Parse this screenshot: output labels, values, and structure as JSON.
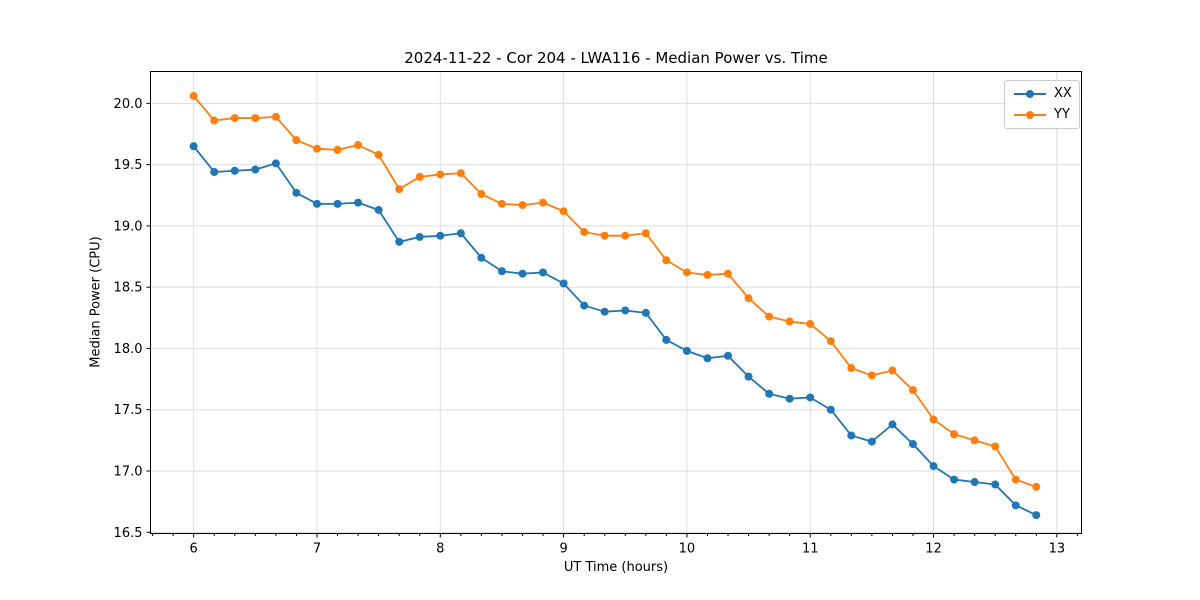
{
  "chart_data": {
    "type": "line",
    "title": "2024-11-22 - Cor 204 - LWA116 - Median Power vs. Time",
    "xlabel": "UT Time (hours)",
    "ylabel": "Median Power (CPU)",
    "xlim": [
      5.65,
      13.2
    ],
    "ylim": [
      16.49,
      20.26
    ],
    "x_ticks": [
      6,
      7,
      8,
      9,
      10,
      11,
      12,
      13
    ],
    "x_tick_labels": [
      "6",
      "7",
      "8",
      "9",
      "10",
      "11",
      "12",
      "13"
    ],
    "y_ticks": [
      16.5,
      17.0,
      17.5,
      18.0,
      18.5,
      19.0,
      19.5,
      20.0
    ],
    "y_tick_labels": [
      "16.5",
      "17.0",
      "17.5",
      "18.0",
      "18.5",
      "19.0",
      "19.5",
      "20.0"
    ],
    "x_minor_step": 0.16667,
    "grid": true,
    "grid_color": "#dedede",
    "spine_color": "#000000",
    "legend_position": "upper right",
    "x": [
      6.0,
      6.167,
      6.333,
      6.5,
      6.667,
      6.833,
      7.0,
      7.167,
      7.333,
      7.5,
      7.667,
      7.833,
      8.0,
      8.167,
      8.333,
      8.5,
      8.667,
      8.833,
      9.0,
      9.167,
      9.333,
      9.5,
      9.667,
      9.833,
      10.0,
      10.167,
      10.333,
      10.5,
      10.667,
      10.833,
      11.0,
      11.167,
      11.333,
      11.5,
      11.667,
      11.833,
      12.0,
      12.167,
      12.333,
      12.5,
      12.667,
      12.833
    ],
    "series": [
      {
        "name": "XX",
        "color": "#1f77b4",
        "marker": "circle",
        "values": [
          19.65,
          19.44,
          19.45,
          19.46,
          19.51,
          19.27,
          19.18,
          19.18,
          19.19,
          19.13,
          18.87,
          18.91,
          18.92,
          18.94,
          18.74,
          18.63,
          18.61,
          18.62,
          18.53,
          18.35,
          18.3,
          18.31,
          18.29,
          18.07,
          17.98,
          17.92,
          17.94,
          17.77,
          17.63,
          17.59,
          17.6,
          17.5,
          17.29,
          17.24,
          17.38,
          17.22,
          17.04,
          16.93,
          16.91,
          16.89,
          16.72,
          16.64
        ]
      },
      {
        "name": "YY",
        "color": "#ff7f0e",
        "marker": "circle",
        "values": [
          20.06,
          19.86,
          19.88,
          19.88,
          19.89,
          19.7,
          19.63,
          19.62,
          19.66,
          19.58,
          19.3,
          19.4,
          19.42,
          19.43,
          19.26,
          19.18,
          19.17,
          19.19,
          19.12,
          18.95,
          18.92,
          18.92,
          18.94,
          18.72,
          18.62,
          18.6,
          18.61,
          18.41,
          18.26,
          18.22,
          18.2,
          18.06,
          17.84,
          17.78,
          17.82,
          17.66,
          17.42,
          17.3,
          17.25,
          17.2,
          16.93,
          16.87
        ]
      }
    ]
  }
}
